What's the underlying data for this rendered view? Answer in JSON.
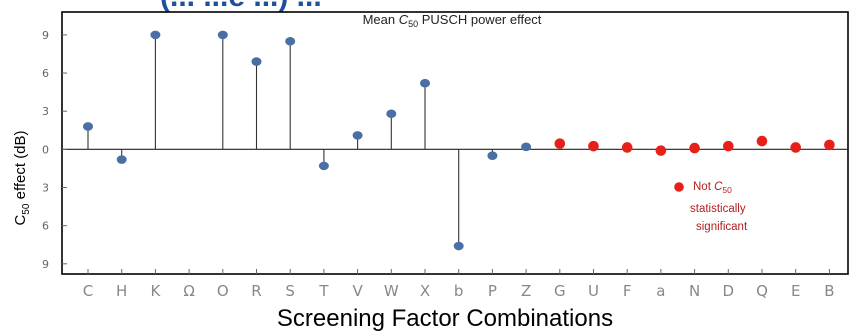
{
  "header": {
    "cut_text": "(... ...e ...) ..."
  },
  "chart_data": {
    "type": "scatter",
    "style": "stem",
    "title": "Mean C50 PUSCH power effect",
    "title_parts": {
      "pre": "Mean ",
      "sym": "C",
      "sub": "50",
      "post": " PUSCH power effect"
    },
    "xlabel": "Screening Factor Combinations",
    "ylabel": "C50 effect (dB)",
    "ylabel_parts": {
      "pre": "C",
      "sub": "50",
      "post": " effect (dB)"
    },
    "ylim": [
      -9.8,
      10.8
    ],
    "yticks": [
      9,
      6,
      3,
      0,
      -3,
      -6,
      -9
    ],
    "ytick_labels": [
      "9",
      "6",
      "3",
      "0",
      "3",
      "6",
      "9"
    ],
    "grid": false,
    "categories": [
      "C",
      "H",
      "K",
      "Ω",
      "O",
      "R",
      "S",
      "T",
      "V",
      "W",
      "X",
      "b",
      "P",
      "Z",
      "G",
      "U",
      "F",
      "a",
      "N",
      "D",
      "Q",
      "E",
      "B"
    ],
    "series": [
      {
        "significant": true,
        "color": "#4a6fa5",
        "points": [
          {
            "x": "C",
            "y": 1.8
          },
          {
            "x": "H",
            "y": -0.8
          },
          {
            "x": "K",
            "y": 9.0
          },
          {
            "x": "O",
            "y": 9.0
          },
          {
            "x": "R",
            "y": 6.9
          },
          {
            "x": "S",
            "y": 8.5
          },
          {
            "x": "T",
            "y": -1.3
          },
          {
            "x": "V",
            "y": 1.1
          },
          {
            "x": "W",
            "y": 2.8
          },
          {
            "x": "X",
            "y": 5.2
          },
          {
            "x": "b",
            "y": -7.6
          },
          {
            "x": "P",
            "y": -0.5
          },
          {
            "x": "Z",
            "y": 0.2
          }
        ]
      },
      {
        "significant": false,
        "color": "#e8201a",
        "points": [
          {
            "x": "G",
            "y": 0.45
          },
          {
            "x": "U",
            "y": 0.25
          },
          {
            "x": "F",
            "y": 0.15
          },
          {
            "x": "a",
            "y": -0.1
          },
          {
            "x": "N",
            "y": 0.1
          },
          {
            "x": "D",
            "y": 0.25
          },
          {
            "x": "Q",
            "y": 0.65
          },
          {
            "x": "E",
            "y": 0.15
          },
          {
            "x": "B",
            "y": 0.35
          }
        ]
      }
    ],
    "annotation": {
      "line1_pre": "Not ",
      "line1_sym": "C",
      "line1_sub": "50",
      "line2": "statistically",
      "line3": "significant",
      "marker_color": "#e8201a",
      "text_color": "#b42020"
    }
  }
}
